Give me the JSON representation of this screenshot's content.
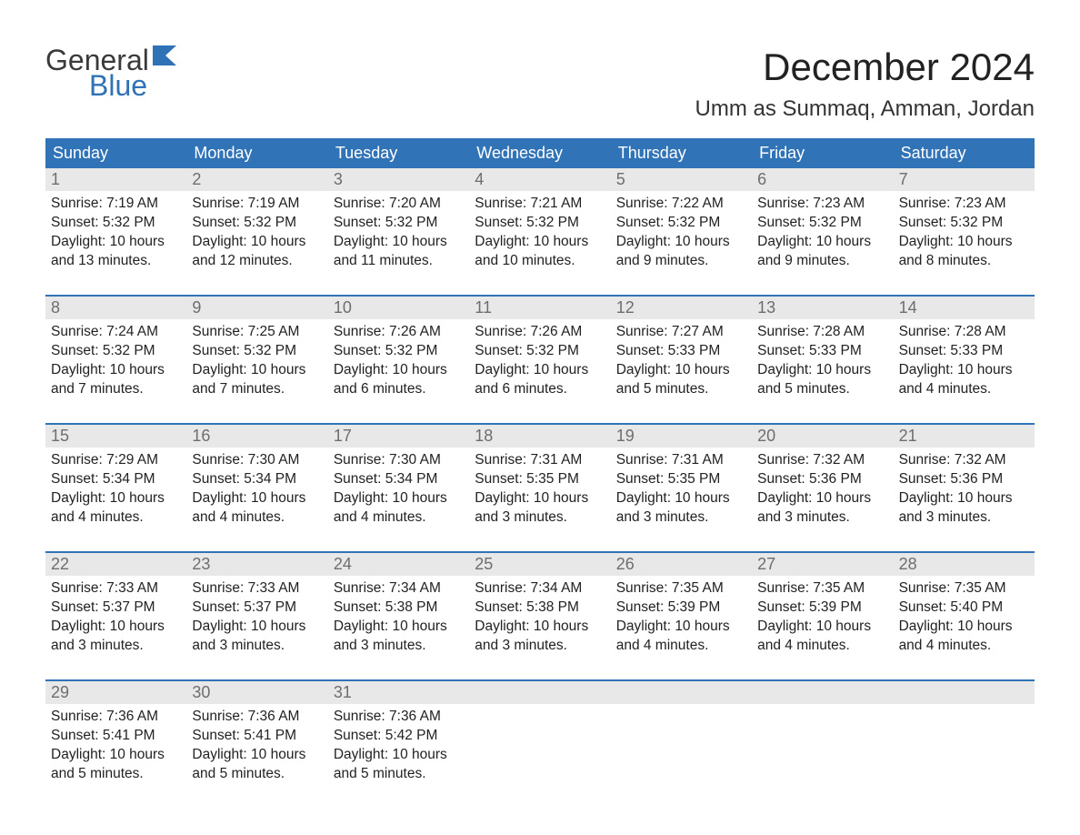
{
  "logo": {
    "word1": "General",
    "word2": "Blue",
    "text_color": "#3a3a3a",
    "accent_color": "#2f72b6"
  },
  "title": "December 2024",
  "location": "Umm as Summaq, Amman, Jordan",
  "colors": {
    "header_bg": "#3173b7",
    "header_text": "#ffffff",
    "daynum_bg": "#e8e8e8",
    "daynum_text": "#6e6e6e",
    "week_border": "#3173b7",
    "body_text": "#222222",
    "page_bg": "#ffffff"
  },
  "typography": {
    "title_fontsize": 42,
    "location_fontsize": 24,
    "dow_fontsize": 18,
    "daynum_fontsize": 18,
    "cell_fontsize": 15.5,
    "font_family": "Arial"
  },
  "days_of_week": [
    "Sunday",
    "Monday",
    "Tuesday",
    "Wednesday",
    "Thursday",
    "Friday",
    "Saturday"
  ],
  "weeks": [
    [
      {
        "n": "1",
        "sunrise": "Sunrise: 7:19 AM",
        "sunset": "Sunset: 5:32 PM",
        "d1": "Daylight: 10 hours",
        "d2": "and 13 minutes."
      },
      {
        "n": "2",
        "sunrise": "Sunrise: 7:19 AM",
        "sunset": "Sunset: 5:32 PM",
        "d1": "Daylight: 10 hours",
        "d2": "and 12 minutes."
      },
      {
        "n": "3",
        "sunrise": "Sunrise: 7:20 AM",
        "sunset": "Sunset: 5:32 PM",
        "d1": "Daylight: 10 hours",
        "d2": "and 11 minutes."
      },
      {
        "n": "4",
        "sunrise": "Sunrise: 7:21 AM",
        "sunset": "Sunset: 5:32 PM",
        "d1": "Daylight: 10 hours",
        "d2": "and 10 minutes."
      },
      {
        "n": "5",
        "sunrise": "Sunrise: 7:22 AM",
        "sunset": "Sunset: 5:32 PM",
        "d1": "Daylight: 10 hours",
        "d2": "and 9 minutes."
      },
      {
        "n": "6",
        "sunrise": "Sunrise: 7:23 AM",
        "sunset": "Sunset: 5:32 PM",
        "d1": "Daylight: 10 hours",
        "d2": "and 9 minutes."
      },
      {
        "n": "7",
        "sunrise": "Sunrise: 7:23 AM",
        "sunset": "Sunset: 5:32 PM",
        "d1": "Daylight: 10 hours",
        "d2": "and 8 minutes."
      }
    ],
    [
      {
        "n": "8",
        "sunrise": "Sunrise: 7:24 AM",
        "sunset": "Sunset: 5:32 PM",
        "d1": "Daylight: 10 hours",
        "d2": "and 7 minutes."
      },
      {
        "n": "9",
        "sunrise": "Sunrise: 7:25 AM",
        "sunset": "Sunset: 5:32 PM",
        "d1": "Daylight: 10 hours",
        "d2": "and 7 minutes."
      },
      {
        "n": "10",
        "sunrise": "Sunrise: 7:26 AM",
        "sunset": "Sunset: 5:32 PM",
        "d1": "Daylight: 10 hours",
        "d2": "and 6 minutes."
      },
      {
        "n": "11",
        "sunrise": "Sunrise: 7:26 AM",
        "sunset": "Sunset: 5:32 PM",
        "d1": "Daylight: 10 hours",
        "d2": "and 6 minutes."
      },
      {
        "n": "12",
        "sunrise": "Sunrise: 7:27 AM",
        "sunset": "Sunset: 5:33 PM",
        "d1": "Daylight: 10 hours",
        "d2": "and 5 minutes."
      },
      {
        "n": "13",
        "sunrise": "Sunrise: 7:28 AM",
        "sunset": "Sunset: 5:33 PM",
        "d1": "Daylight: 10 hours",
        "d2": "and 5 minutes."
      },
      {
        "n": "14",
        "sunrise": "Sunrise: 7:28 AM",
        "sunset": "Sunset: 5:33 PM",
        "d1": "Daylight: 10 hours",
        "d2": "and 4 minutes."
      }
    ],
    [
      {
        "n": "15",
        "sunrise": "Sunrise: 7:29 AM",
        "sunset": "Sunset: 5:34 PM",
        "d1": "Daylight: 10 hours",
        "d2": "and 4 minutes."
      },
      {
        "n": "16",
        "sunrise": "Sunrise: 7:30 AM",
        "sunset": "Sunset: 5:34 PM",
        "d1": "Daylight: 10 hours",
        "d2": "and 4 minutes."
      },
      {
        "n": "17",
        "sunrise": "Sunrise: 7:30 AM",
        "sunset": "Sunset: 5:34 PM",
        "d1": "Daylight: 10 hours",
        "d2": "and 4 minutes."
      },
      {
        "n": "18",
        "sunrise": "Sunrise: 7:31 AM",
        "sunset": "Sunset: 5:35 PM",
        "d1": "Daylight: 10 hours",
        "d2": "and 3 minutes."
      },
      {
        "n": "19",
        "sunrise": "Sunrise: 7:31 AM",
        "sunset": "Sunset: 5:35 PM",
        "d1": "Daylight: 10 hours",
        "d2": "and 3 minutes."
      },
      {
        "n": "20",
        "sunrise": "Sunrise: 7:32 AM",
        "sunset": "Sunset: 5:36 PM",
        "d1": "Daylight: 10 hours",
        "d2": "and 3 minutes."
      },
      {
        "n": "21",
        "sunrise": "Sunrise: 7:32 AM",
        "sunset": "Sunset: 5:36 PM",
        "d1": "Daylight: 10 hours",
        "d2": "and 3 minutes."
      }
    ],
    [
      {
        "n": "22",
        "sunrise": "Sunrise: 7:33 AM",
        "sunset": "Sunset: 5:37 PM",
        "d1": "Daylight: 10 hours",
        "d2": "and 3 minutes."
      },
      {
        "n": "23",
        "sunrise": "Sunrise: 7:33 AM",
        "sunset": "Sunset: 5:37 PM",
        "d1": "Daylight: 10 hours",
        "d2": "and 3 minutes."
      },
      {
        "n": "24",
        "sunrise": "Sunrise: 7:34 AM",
        "sunset": "Sunset: 5:38 PM",
        "d1": "Daylight: 10 hours",
        "d2": "and 3 minutes."
      },
      {
        "n": "25",
        "sunrise": "Sunrise: 7:34 AM",
        "sunset": "Sunset: 5:38 PM",
        "d1": "Daylight: 10 hours",
        "d2": "and 3 minutes."
      },
      {
        "n": "26",
        "sunrise": "Sunrise: 7:35 AM",
        "sunset": "Sunset: 5:39 PM",
        "d1": "Daylight: 10 hours",
        "d2": "and 4 minutes."
      },
      {
        "n": "27",
        "sunrise": "Sunrise: 7:35 AM",
        "sunset": "Sunset: 5:39 PM",
        "d1": "Daylight: 10 hours",
        "d2": "and 4 minutes."
      },
      {
        "n": "28",
        "sunrise": "Sunrise: 7:35 AM",
        "sunset": "Sunset: 5:40 PM",
        "d1": "Daylight: 10 hours",
        "d2": "and 4 minutes."
      }
    ],
    [
      {
        "n": "29",
        "sunrise": "Sunrise: 7:36 AM",
        "sunset": "Sunset: 5:41 PM",
        "d1": "Daylight: 10 hours",
        "d2": "and 5 minutes."
      },
      {
        "n": "30",
        "sunrise": "Sunrise: 7:36 AM",
        "sunset": "Sunset: 5:41 PM",
        "d1": "Daylight: 10 hours",
        "d2": "and 5 minutes."
      },
      {
        "n": "31",
        "sunrise": "Sunrise: 7:36 AM",
        "sunset": "Sunset: 5:42 PM",
        "d1": "Daylight: 10 hours",
        "d2": "and 5 minutes."
      },
      null,
      null,
      null,
      null
    ]
  ]
}
